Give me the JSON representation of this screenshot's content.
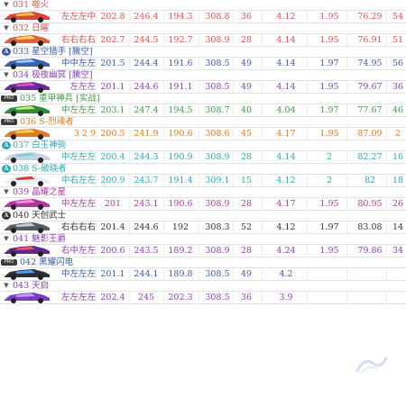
{
  "colors": {
    "red": "#d9534f",
    "blue": "#3a5ca8",
    "purple": "#8a3fb6",
    "green": "#3f9b46",
    "orange": "#e07a1f",
    "cyan": "#2aa9b8",
    "magenta": "#b0389c",
    "dark": "#333333",
    "gray": "#555555"
  },
  "rows": [
    {
      "title": "031 噬火",
      "badge": "triangle",
      "color": "red",
      "combo": "左左左中",
      "v": [
        "202.8",
        "246.4",
        "194.3",
        "308.8",
        "36",
        "4.12",
        "1.95",
        "76.29",
        "54"
      ],
      "car_color": "#d8473f",
      "car_accent": "#f2c23a"
    },
    {
      "title": "032 日曜",
      "badge": "triangle",
      "color": "red",
      "combo": "右右右右",
      "v": [
        "202.7",
        "244.5",
        "192.7",
        "308.9",
        "28",
        "4.14",
        "1.95",
        "76.91",
        "51"
      ],
      "car_color": "#e06040",
      "car_accent": "#ffd35a"
    },
    {
      "title": "033 星空猎手 [騰空]",
      "badge": "circle",
      "color": "blue",
      "combo": "中中左左",
      "v": [
        "201.5",
        "244.4",
        "191.6",
        "308.5",
        "49",
        "4.14",
        "1.97",
        "74.95",
        "56"
      ],
      "car_color": "#3d5fb0",
      "car_accent": "#9ac8ff"
    },
    {
      "title": "034 极夜幽冥 [騰空]",
      "badge": "triangle",
      "color": "purple",
      "combo": "左左左",
      "v": [
        "201.1",
        "244.6",
        "191.1",
        "308.5",
        "49",
        "4.14",
        "1.95",
        "79.67",
        "36"
      ],
      "car_color": "#6a2c9a",
      "car_accent": "#e04fb0"
    },
    {
      "title": "035 重甲神兵 [实战]",
      "badge": "tag",
      "color": "green",
      "combo": "中左左左",
      "v": [
        "203.1",
        "247.4",
        "194.5",
        "308.7",
        "40",
        "4.04",
        "1.97",
        "77.67",
        "46"
      ],
      "car_color": "#2f8a3a",
      "car_accent": "#c9e86a"
    },
    {
      "title": "036 S-烈魂者",
      "badge": "tag",
      "color": "orange",
      "combo": "3 2 9",
      "v": [
        "200.5",
        "241.9",
        "190.6",
        "308.6",
        "45",
        "4.17",
        "1.95",
        "87.09",
        "2"
      ],
      "car_color": "#e07a1f",
      "car_accent": "#ffcf5a"
    },
    {
      "title": "037 白玉神驹",
      "badge": "circle",
      "color": "cyan",
      "combo": "中左左左",
      "v": [
        "200.4",
        "244.3",
        "190.9",
        "308.9",
        "28",
        "4.14",
        "2",
        "82.27",
        "16"
      ],
      "car_color": "#c8d3e0",
      "car_accent": "#7fd0e0"
    },
    {
      "title": "038 S-破晓者",
      "badge": "circle",
      "color": "cyan",
      "combo": "中右左左",
      "v": [
        "200.9",
        "243.7",
        "191.4",
        "309.1",
        "15",
        "4.12",
        "2",
        "82",
        "18"
      ],
      "car_color": "#e8eef5",
      "car_accent": "#d83a3a"
    },
    {
      "title": "039 晶耀之星",
      "badge": "triangle",
      "color": "magenta",
      "combo": "中左左左",
      "v": [
        "201",
        "243.1",
        "190.6",
        "308.9",
        "28",
        "4.17",
        "1.95",
        "80.95",
        "26"
      ],
      "car_color": "#b0389c",
      "car_accent": "#ff8fd8"
    },
    {
      "title": "040 天创武士",
      "badge": "circle",
      "color": "dark",
      "combo": "右右右右",
      "v": [
        "201.4",
        "244.6",
        "192",
        "308.3",
        "52",
        "4.12",
        "1.97",
        "83.08",
        "14"
      ],
      "car_color": "#555b66",
      "car_accent": "#c9ced6"
    },
    {
      "title": "041 魅影王爵",
      "badge": "triangle",
      "color": "purple",
      "combo": "右中左左",
      "v": [
        "200.6",
        "243.5",
        "189.2",
        "308.9",
        "28",
        "4.24",
        "1.95",
        "79.86",
        "34"
      ],
      "car_color": "#5a2a8a",
      "car_accent": "#f04f6a"
    },
    {
      "title": "042 黑耀闪电",
      "badge": "tag",
      "color": "blue",
      "combo": "中左左左",
      "v": [
        "201.1",
        "244.1",
        "189.8",
        "308.5",
        "49",
        "4.2",
        "",
        "",
        ""
      ],
      "car_color": "#2a2f3a",
      "car_accent": "#4fa0ff"
    },
    {
      "title": "043 天启",
      "badge": "triangle",
      "color": "purple",
      "combo": "左左左左",
      "v": [
        "202.4",
        "245",
        "202.3",
        "308.5",
        "36",
        "3.9",
        "",
        "",
        ""
      ],
      "car_color": "#7a3fc0",
      "car_accent": "#c49aff"
    }
  ]
}
